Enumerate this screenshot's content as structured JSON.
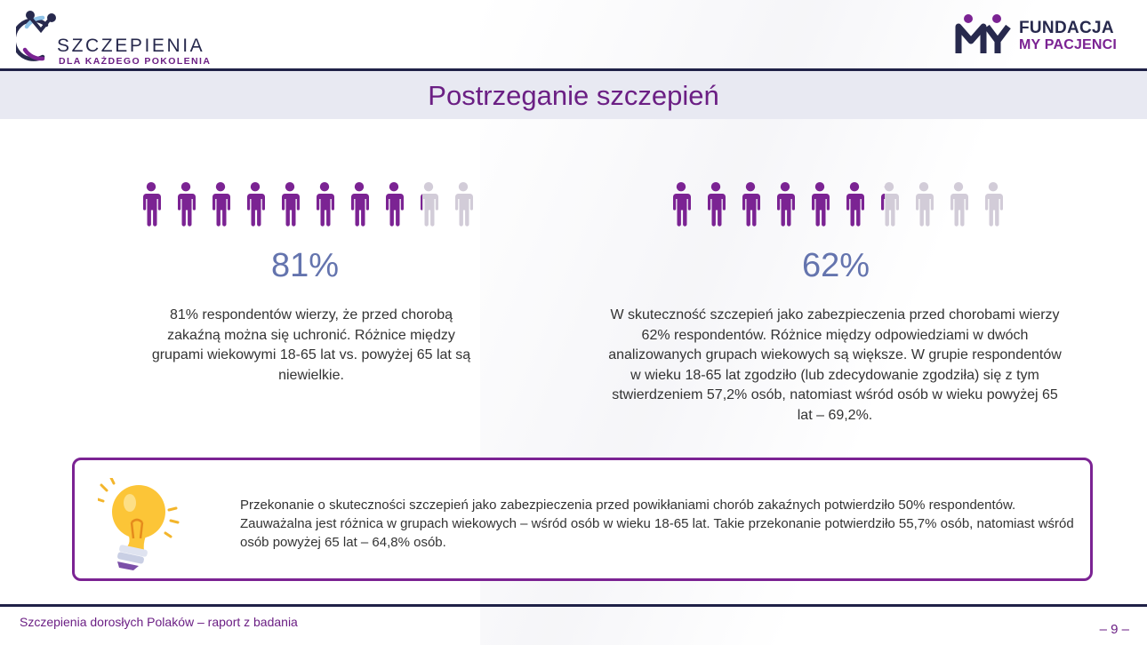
{
  "header": {
    "logo_left_line1": "SZCZEPIENIA",
    "logo_left_line2": "DLA KAŻDEGO POKOLENIA",
    "logo_right_mark": "MY",
    "logo_right_line1": "FUNDACJA",
    "logo_right_line2": "MY PACJENCI"
  },
  "title": "Postrzeganie szczepień",
  "stats": [
    {
      "percent_label": "81%",
      "value": 81,
      "description": "81% respondentów wierzy, że przed chorobą zakaźną można się uchronić. Różnice między grupami wiekowymi 18-65 lat vs. powyżej 65 lat są niewielkie."
    },
    {
      "percent_label": "62%",
      "value": 62,
      "description": "W skuteczność szczepień jako zabezpieczenia przed chorobami wierzy 62% respondentów. Różnice między odpowiedziami w dwóch analizowanych grupach wiekowych są większe. W grupie respondentów w wieku 18-65 lat zgodziło (lub zdecydowanie zgodziła) się z tym stwierdzeniem 57,2% osób, natomiast wśród osób w wieku powyżej 65 lat – 69,2%."
    }
  ],
  "info_box": {
    "icon": "lightbulb-icon",
    "text": "Przekonanie o skuteczności szczepień jako zabezpieczenia przed powikłaniami chorób zakaźnych potwierdziło 50% respondentów. Zauważalna jest różnica w grupach wiekowych – wśród osób w wieku 18-65 lat. Takie przekonanie potwierdziło 55,7% osób, natomiast wśród osób powyżej 65 lat – 64,8% osób."
  },
  "footer": {
    "report_title": "Szczepienia dorosłych Polaków – raport z badania",
    "page_number": "– 9 –"
  },
  "colors": {
    "accent_purple": "#7b2393",
    "icon_gray": "#d2ccd8",
    "percent_blue": "#6474ae",
    "navy": "#1f2147",
    "title_band": "#e8e9f2"
  }
}
